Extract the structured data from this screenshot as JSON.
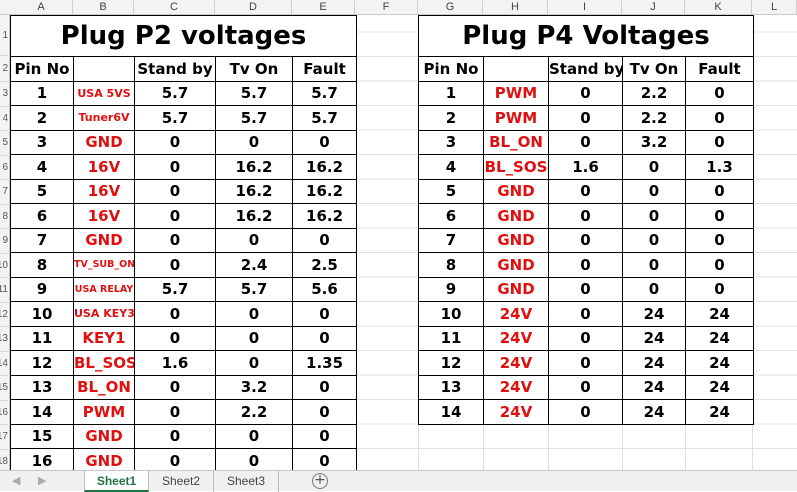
{
  "columns": [
    "A",
    "B",
    "C",
    "D",
    "E",
    "F",
    "G",
    "H",
    "I",
    "J",
    "K",
    "L"
  ],
  "row_numbers": [
    "1",
    "2",
    "3",
    "4",
    "5",
    "6",
    "7",
    "8",
    "9",
    "10",
    "11",
    "12",
    "13",
    "14",
    "15",
    "16",
    "17",
    "18"
  ],
  "p2": {
    "title": "Plug P2 voltages",
    "headers": [
      "Pin No",
      "",
      "Stand by",
      "Tv On",
      "Fault"
    ],
    "rows": [
      [
        "1",
        "USA 5VS",
        "5.7",
        "5.7",
        "5.7"
      ],
      [
        "2",
        "Tuner6V",
        "5.7",
        "5.7",
        "5.7"
      ],
      [
        "3",
        "GND",
        "0",
        "0",
        "0"
      ],
      [
        "4",
        "16V",
        "0",
        "16.2",
        "16.2"
      ],
      [
        "5",
        "16V",
        "0",
        "16.2",
        "16.2"
      ],
      [
        "6",
        "16V",
        "0",
        "16.2",
        "16.2"
      ],
      [
        "7",
        "GND",
        "0",
        "0",
        "0"
      ],
      [
        "8",
        "TV_SUB_ON",
        "0",
        "2.4",
        "2.5"
      ],
      [
        "9",
        "USA RELAY",
        "5.7",
        "5.7",
        "5.6"
      ],
      [
        "10",
        "USA KEY3",
        "0",
        "0",
        "0"
      ],
      [
        "11",
        "KEY1",
        "0",
        "0",
        "0"
      ],
      [
        "12",
        "BL_SOS",
        "1.6",
        "0",
        "1.35"
      ],
      [
        "13",
        "BL_ON",
        "0",
        "3.2",
        "0"
      ],
      [
        "14",
        "PWM",
        "0",
        "2.2",
        "0"
      ],
      [
        "15",
        "GND",
        "0",
        "0",
        "0"
      ],
      [
        "16",
        "GND",
        "0",
        "0",
        "0"
      ]
    ]
  },
  "p4": {
    "title": "Plug P4 Voltages",
    "headers": [
      "Pin No",
      "",
      "Stand by",
      "Tv On",
      "Fault"
    ],
    "rows": [
      [
        "1",
        "PWM",
        "0",
        "2.2",
        "0"
      ],
      [
        "2",
        "PWM",
        "0",
        "2.2",
        "0"
      ],
      [
        "3",
        "BL_ON",
        "0",
        "3.2",
        "0"
      ],
      [
        "4",
        "BL_SOS",
        "1.6",
        "0",
        "1.3"
      ],
      [
        "5",
        "GND",
        "0",
        "0",
        "0"
      ],
      [
        "6",
        "GND",
        "0",
        "0",
        "0"
      ],
      [
        "7",
        "GND",
        "0",
        "0",
        "0"
      ],
      [
        "8",
        "GND",
        "0",
        "0",
        "0"
      ],
      [
        "9",
        "GND",
        "0",
        "0",
        "0"
      ],
      [
        "10",
        "24V",
        "0",
        "24",
        "24"
      ],
      [
        "11",
        "24V",
        "0",
        "24",
        "24"
      ],
      [
        "12",
        "24V",
        "0",
        "24",
        "24"
      ],
      [
        "13",
        "24V",
        "0",
        "24",
        "24"
      ],
      [
        "14",
        "24V",
        "0",
        "24",
        "24"
      ]
    ]
  },
  "sheet_tabs": [
    "Sheet1",
    "Sheet2",
    "Sheet3"
  ],
  "active_tab": "Sheet1",
  "colors": {
    "label_red": "#e01010",
    "active_tab_green": "#217346"
  }
}
